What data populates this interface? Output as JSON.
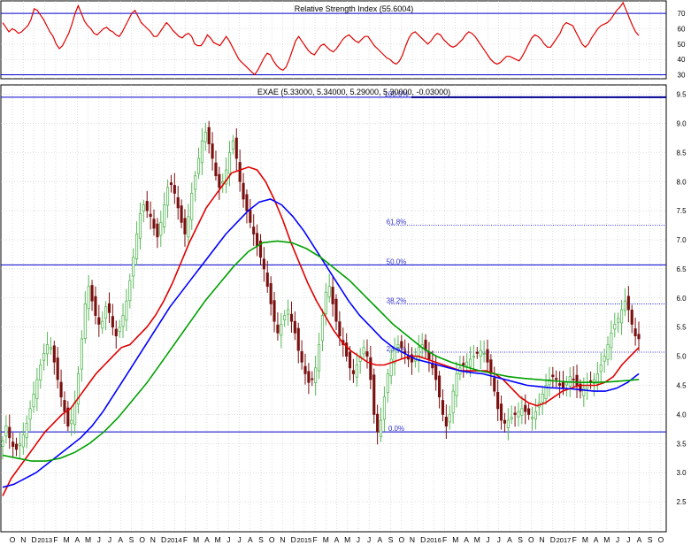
{
  "colors": {
    "grid": "#c8c8c8",
    "axis": "#000000",
    "blue_line": "#0000cc",
    "candle_up": "#58b858",
    "candle_down": "#7a1010",
    "ma_short": "#e00000",
    "ma_mid": "#0000ff",
    "ma_long": "#00a000",
    "rsi_line": "#e00000",
    "fib_text": "#3333cc"
  },
  "chart_data": [
    {
      "type": "line",
      "title": "Relative Strength Index (55.6004)",
      "y_ticks": [
        30,
        40,
        50,
        60,
        70
      ],
      "ylim": [
        28,
        77
      ],
      "reference_lines": [
        30,
        70
      ],
      "series": [
        {
          "values": [
            64,
            61,
            58,
            60,
            59,
            57,
            58,
            60,
            62,
            66,
            73,
            72,
            69,
            66,
            62,
            58,
            55,
            50,
            47,
            49,
            53,
            57,
            63,
            70,
            75,
            70,
            65,
            62,
            60,
            57,
            56,
            58,
            60,
            61,
            59,
            58,
            56,
            55,
            58,
            62,
            66,
            70,
            72,
            68,
            64,
            62,
            60,
            58,
            55,
            55,
            58,
            61,
            64,
            62,
            59,
            57,
            55,
            54,
            56,
            57,
            55,
            50,
            49,
            49,
            52,
            56,
            54,
            51,
            50,
            49,
            52,
            55,
            52,
            48,
            44,
            40,
            38,
            36,
            34,
            32,
            30,
            33,
            37,
            41,
            44,
            43,
            39,
            36,
            34,
            33,
            35,
            40,
            46,
            52,
            55,
            52,
            49,
            46,
            44,
            43,
            46,
            49,
            50,
            48,
            46,
            45,
            47,
            50,
            53,
            55,
            56,
            54,
            52,
            51,
            53,
            55,
            55,
            52,
            49,
            47,
            45,
            43,
            41,
            40,
            38,
            37,
            39,
            43,
            49,
            54,
            57,
            58,
            56,
            54,
            52,
            50,
            52,
            55,
            57,
            56,
            53,
            51,
            49,
            48,
            49,
            51,
            53,
            56,
            58,
            57,
            55,
            52,
            49,
            46,
            43,
            40,
            38,
            37,
            38,
            40,
            42,
            42,
            41,
            40,
            39,
            42,
            46,
            50,
            54,
            56,
            55,
            53,
            50,
            48,
            48,
            51,
            54,
            57,
            62,
            64,
            63,
            62,
            58,
            54,
            50,
            48,
            50,
            54,
            57,
            60,
            62,
            63,
            64,
            66,
            69,
            72,
            74,
            77,
            72,
            67,
            62,
            58,
            55.6
          ]
        }
      ]
    },
    {
      "type": "candlestick",
      "title": "EXAE (5.33000, 5.34000, 5.29000, 5.30000, -0.03000)",
      "y_ticks": [
        "2.5",
        "3.0",
        "3.5",
        "4.0",
        "4.5",
        "5.0",
        "5.5",
        "6.0",
        "6.5",
        "7.0",
        "7.5",
        "8.0",
        "8.5",
        "9.0",
        "9.5"
      ],
      "ylim": [
        2.0,
        9.6
      ],
      "x_ticks": [
        "O",
        "N",
        "D",
        "2013",
        "F",
        "M",
        "A",
        "M",
        "J",
        "J",
        "A",
        "S",
        "O",
        "N",
        "D",
        "2014",
        "F",
        "M",
        "A",
        "M",
        "J",
        "J",
        "A",
        "S",
        "O",
        "N",
        "D",
        "2015",
        "F",
        "M",
        "A",
        "M",
        "J",
        "J",
        "A",
        "S",
        "O",
        "N",
        "D",
        "2016",
        "F",
        "M",
        "A",
        "M",
        "J",
        "J",
        "A",
        "S",
        "O",
        "N",
        "D",
        "2017",
        "F",
        "M",
        "A",
        "M",
        "J",
        "J",
        "A",
        "S",
        "O"
      ],
      "fibonacci": [
        {
          "label": "100.0%",
          "value": 9.45
        },
        {
          "label": "61.8%",
          "value": 7.25
        },
        {
          "label": "50.0%",
          "value": 6.57
        },
        {
          "label": "38.2%",
          "value": 5.9
        },
        {
          "label": "23.6%",
          "value": 5.07
        },
        {
          "label": "0.0%",
          "value": 3.7
        }
      ],
      "horizontal_lines": [
        9.45,
        6.57,
        3.7
      ],
      "close_series": [
        3.55,
        3.8,
        3.6,
        3.45,
        3.4,
        3.5,
        3.65,
        3.85,
        4.1,
        4.35,
        4.6,
        4.85,
        5.05,
        5.2,
        5.15,
        4.9,
        4.6,
        4.3,
        4.05,
        3.8,
        3.9,
        4.2,
        4.7,
        5.3,
        5.9,
        6.2,
        5.95,
        5.7,
        5.55,
        5.6,
        5.85,
        5.75,
        5.5,
        5.35,
        5.5,
        5.7,
        5.95,
        6.3,
        6.7,
        7.1,
        7.45,
        7.6,
        7.5,
        7.4,
        7.2,
        7.05,
        7.3,
        7.6,
        7.9,
        7.95,
        7.8,
        7.55,
        7.3,
        7.1,
        7.4,
        7.8,
        8.1,
        8.4,
        8.7,
        8.85,
        8.65,
        8.4,
        8.1,
        7.9,
        8.0,
        8.2,
        8.5,
        8.7,
        8.4,
        8.0,
        7.7,
        7.5,
        7.3,
        7.1,
        6.9,
        6.7,
        6.5,
        6.2,
        5.9,
        5.6,
        5.4,
        5.55,
        5.7,
        5.8,
        5.6,
        5.4,
        5.1,
        4.9,
        4.7,
        4.55,
        4.6,
        4.8,
        5.2,
        5.7,
        6.1,
        6.2,
        5.9,
        5.6,
        5.35,
        5.2,
        5.0,
        4.8,
        4.7,
        4.85,
        5.0,
        5.15,
        5.0,
        4.6,
        4.0,
        3.7,
        3.9,
        4.3,
        4.7,
        4.95,
        5.1,
        5.2,
        5.15,
        5.05,
        4.95,
        4.9,
        5.0,
        5.15,
        5.2,
        5.1,
        4.95,
        4.8,
        4.6,
        4.3,
        4.0,
        3.8,
        4.0,
        4.4,
        4.7,
        4.8,
        4.85,
        4.9,
        4.95,
        5.0,
        5.05,
        5.1,
        5.05,
        4.9,
        4.7,
        4.4,
        4.1,
        3.9,
        3.85,
        3.9,
        3.95,
        4.0,
        4.05,
        4.1,
        4.05,
        4.0,
        3.95,
        4.05,
        4.2,
        4.35,
        4.5,
        4.6,
        4.65,
        4.6,
        4.5,
        4.45,
        4.55,
        4.65,
        4.6,
        4.5,
        4.4,
        4.45,
        4.5,
        4.55,
        4.6,
        4.7,
        4.85,
        5.0,
        5.2,
        5.4,
        5.55,
        5.65,
        5.8,
        5.95,
        5.8,
        5.55,
        5.35,
        5.3
      ],
      "moving_averages": [
        {
          "color_key": "ma_short",
          "values": [
            2.6,
            2.9,
            3.1,
            3.3,
            3.5,
            3.7,
            3.85,
            4.0,
            4.1,
            4.3,
            4.5,
            4.7,
            4.85,
            5.0,
            5.15,
            5.2,
            5.35,
            5.5,
            5.7,
            5.95,
            6.25,
            6.6,
            6.95,
            7.25,
            7.55,
            7.75,
            7.95,
            8.15,
            8.2,
            8.25,
            8.2,
            8.0,
            7.7,
            7.35,
            6.95,
            6.6,
            6.25,
            5.95,
            5.7,
            5.45,
            5.25,
            5.1,
            5.0,
            4.9,
            4.85,
            4.85,
            4.9,
            4.95,
            5.0,
            5.0,
            4.95,
            4.9,
            4.85,
            4.8,
            4.75,
            4.75,
            4.75,
            4.75,
            4.7,
            4.6,
            4.45,
            4.3,
            4.2,
            4.15,
            4.2,
            4.3,
            4.4,
            4.45,
            4.5,
            4.5,
            4.5,
            4.55,
            4.65,
            4.85,
            5.0,
            5.15
          ]
        },
        {
          "color_key": "ma_mid",
          "values": [
            2.75,
            2.8,
            2.9,
            3.0,
            3.15,
            3.3,
            3.45,
            3.6,
            3.8,
            4.05,
            4.35,
            4.65,
            4.95,
            5.25,
            5.55,
            5.85,
            6.1,
            6.35,
            6.6,
            6.85,
            7.1,
            7.3,
            7.5,
            7.65,
            7.7,
            7.6,
            7.4,
            7.15,
            6.85,
            6.55,
            6.25,
            5.95,
            5.7,
            5.5,
            5.3,
            5.15,
            5.05,
            4.95,
            4.9,
            4.85,
            4.8,
            4.75,
            4.72,
            4.7,
            4.65,
            4.6,
            4.55,
            4.5,
            4.48,
            4.46,
            4.45,
            4.44,
            4.42,
            4.4,
            4.4,
            4.45,
            4.55,
            4.7
          ]
        },
        {
          "color_key": "ma_long",
          "values": [
            3.3,
            3.25,
            3.2,
            3.2,
            3.25,
            3.35,
            3.5,
            3.7,
            3.95,
            4.25,
            4.55,
            4.9,
            5.25,
            5.6,
            5.95,
            6.25,
            6.55,
            6.8,
            6.95,
            6.98,
            6.95,
            6.85,
            6.7,
            6.5,
            6.3,
            6.05,
            5.8,
            5.55,
            5.35,
            5.15,
            5.0,
            4.9,
            4.82,
            4.75,
            4.7,
            4.65,
            4.62,
            4.6,
            4.58,
            4.56,
            4.55,
            4.55,
            4.56,
            4.58,
            4.6
          ]
        }
      ]
    }
  ]
}
